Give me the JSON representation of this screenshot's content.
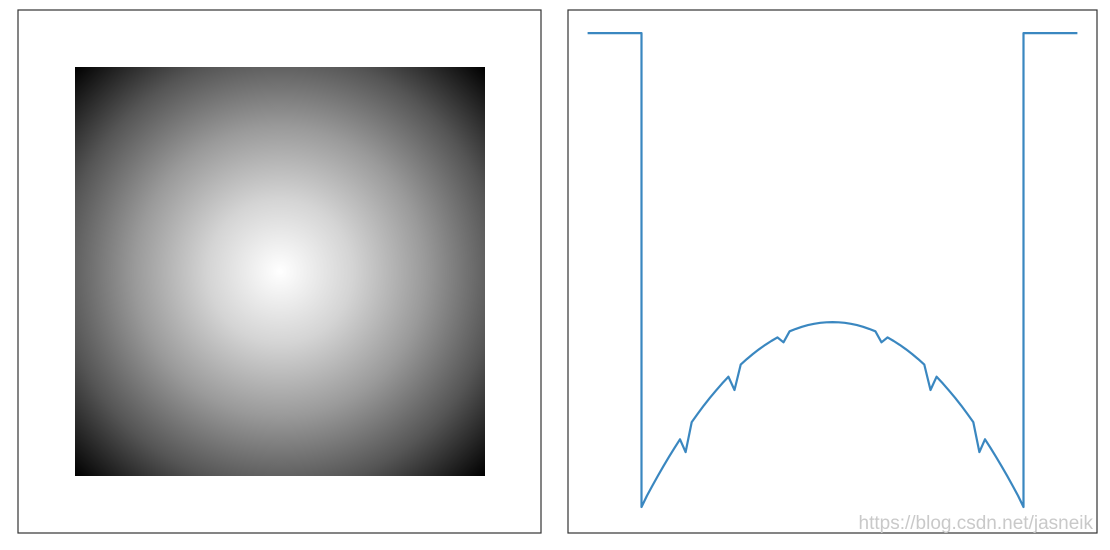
{
  "chart_data": [
    {
      "type": "heatmap",
      "colormap": "gray",
      "pattern": "radial",
      "value_at_center": 1.0,
      "value_at_corners": 0.0,
      "axes_visible": false,
      "grid": false
    },
    {
      "type": "line",
      "axes_visible": false,
      "grid": false,
      "color": "#3a87c0",
      "points": [
        [
          -2.5,
          0.0
        ],
        [
          -1.95,
          0.0
        ],
        [
          -1.95,
          -3.28
        ],
        [
          -1.5,
          -2.9
        ],
        [
          -1.0,
          -2.47
        ],
        [
          -0.5,
          -2.14
        ],
        [
          0.0,
          -2.0
        ],
        [
          0.5,
          -2.14
        ],
        [
          1.0,
          -2.47
        ],
        [
          1.5,
          -2.9
        ],
        [
          1.95,
          -3.28
        ],
        [
          1.95,
          0.0
        ],
        [
          2.5,
          0.0
        ]
      ],
      "xlim": [
        -2.7,
        2.7
      ],
      "ylim": [
        -3.46,
        0.16
      ]
    }
  ],
  "watermark": {
    "text": "https://blog.csdn.net/jasneik"
  }
}
